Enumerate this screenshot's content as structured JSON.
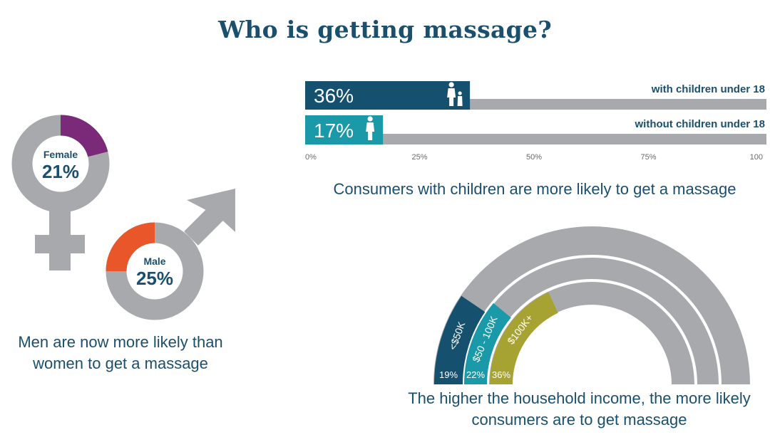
{
  "title": "Who is getting massage?",
  "gender": {
    "female": {
      "label": "Female",
      "value_text": "21%",
      "value": 21,
      "color": "#7b2a7a"
    },
    "male": {
      "label": "Male",
      "value_text": "25%",
      "value": 25,
      "color": "#e8562a"
    },
    "caption": "Men are now more likely than women to get a massage"
  },
  "children": {
    "caption": "Consumers with children are more likely to get a massage",
    "bars": [
      {
        "label": "with children under 18",
        "value_text": "36%",
        "value": 36,
        "color": "#15506e",
        "icon": "parent-child-icon"
      },
      {
        "label": "without children under 18",
        "value_text": "17%",
        "value": 17,
        "color": "#1a9aa8",
        "icon": "adult-icon"
      }
    ],
    "ticks": [
      "0%",
      "25%",
      "50%",
      "75%",
      "100"
    ]
  },
  "income": {
    "caption": "The higher the household income, the more likely consumers are to get massage",
    "arcs": [
      {
        "label": "<$50K",
        "value_text": "19%",
        "value": 19,
        "color": "#15506e"
      },
      {
        "label": "$50 - 100K",
        "value_text": "22%",
        "value": 22,
        "color": "#1a9aa8"
      },
      {
        "label": "$100K+",
        "value_text": "36%",
        "value": 36,
        "color": "#a7a333"
      }
    ]
  },
  "colors": {
    "track": "#a8a9ac",
    "text": "#1a4f6e"
  },
  "chart_data": [
    {
      "type": "donut",
      "categories": [
        "Female",
        "Male"
      ],
      "values": [
        21,
        25
      ],
      "ylim": [
        0,
        100
      ]
    },
    {
      "type": "bar",
      "orientation": "horizontal",
      "categories": [
        "with children under 18",
        "without children under 18"
      ],
      "values": [
        36,
        17
      ],
      "xlim": [
        0,
        100
      ]
    },
    {
      "type": "radial-bar",
      "categories": [
        "<$50K",
        "$50 - 100K",
        "$100K+"
      ],
      "values": [
        19,
        22,
        36
      ],
      "ylim": [
        0,
        100
      ]
    }
  ]
}
